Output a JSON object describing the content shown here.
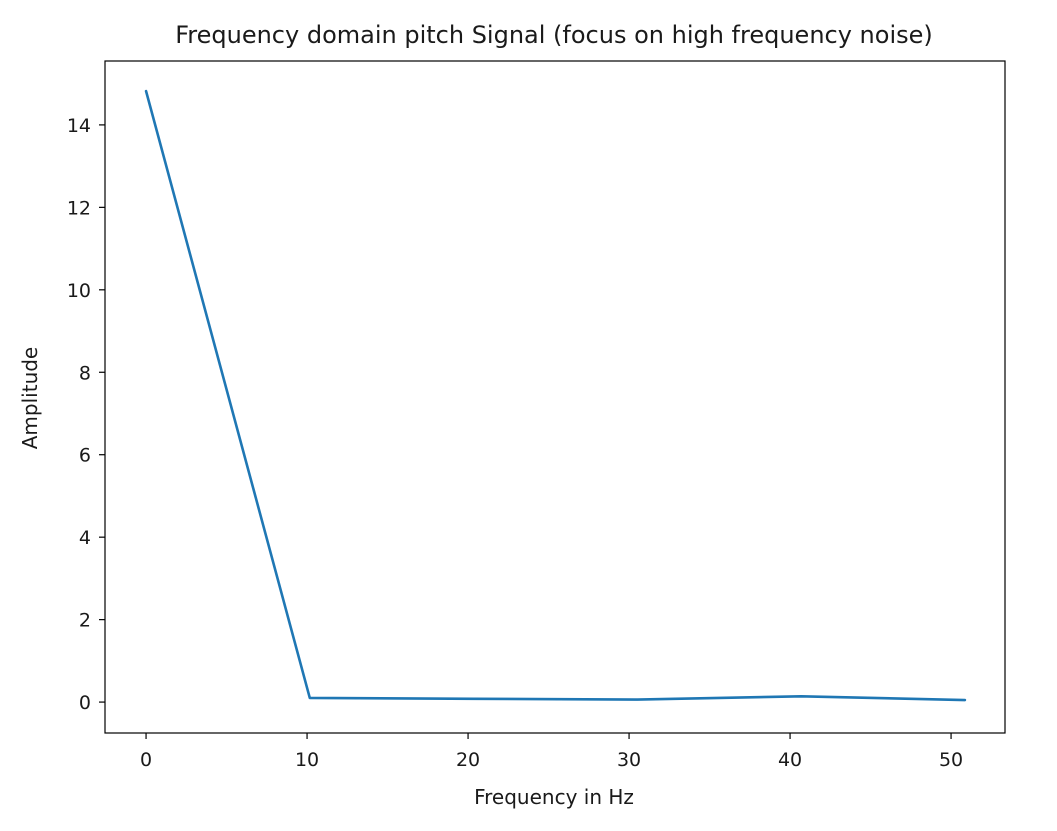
{
  "chart_data": {
    "type": "line",
    "title": "Frequency domain pitch Signal (focus on high frequency noise)",
    "xlabel": "Frequency in Hz",
    "ylabel": "Amplitude",
    "xlim": [
      -2.55,
      53.35
    ],
    "ylim": [
      -0.75,
      15.55
    ],
    "xticks": [
      0,
      10,
      20,
      30,
      40,
      50
    ],
    "yticks": [
      0,
      2,
      4,
      6,
      8,
      10,
      12,
      14
    ],
    "grid": false,
    "series": [
      {
        "color": "#1f77b4",
        "x": [
          0,
          10.17,
          20.35,
          30.52,
          40.69,
          50.86
        ],
        "y": [
          14.82,
          0.1,
          0.08,
          0.06,
          0.14,
          0.05
        ]
      }
    ]
  }
}
